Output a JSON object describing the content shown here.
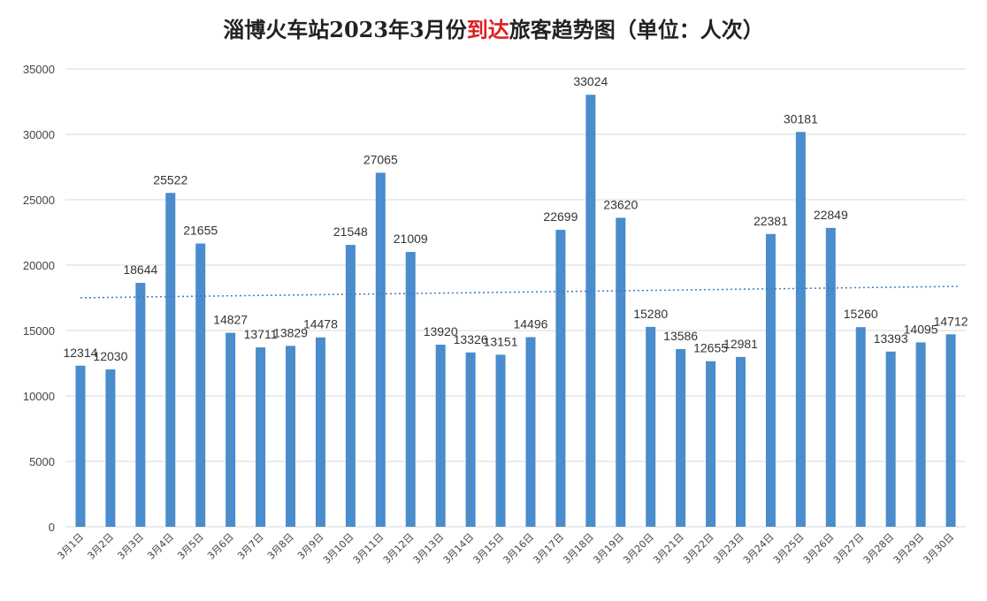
{
  "chart_data": {
    "type": "bar",
    "title_parts": [
      "淄博火车站2023年3月份",
      "到达",
      "旅客趋势图（单位：人次）"
    ],
    "categories": [
      "3月1日",
      "3月2日",
      "3月3日",
      "3月4日",
      "3月5日",
      "3月6日",
      "3月7日",
      "3月8日",
      "3月9日",
      "3月10日",
      "3月11日",
      "3月12日",
      "3月13日",
      "3月14日",
      "3月15日",
      "3月16日",
      "3月17日",
      "3月18日",
      "3月19日",
      "3月20日",
      "3月21日",
      "3月22日",
      "3月23日",
      "3月24日",
      "3月25日",
      "3月26日",
      "3月27日",
      "3月28日",
      "3月29日",
      "3月30日"
    ],
    "values": [
      12314,
      12030,
      18644,
      25522,
      21655,
      14827,
      13711,
      13829,
      14478,
      21548,
      27065,
      21009,
      13920,
      13326,
      13151,
      14496,
      22699,
      33024,
      23620,
      15280,
      13586,
      12655,
      12981,
      22381,
      30181,
      22849,
      15260,
      13393,
      14095,
      14712
    ],
    "ylim": [
      0,
      35000
    ],
    "yticks": [
      0,
      5000,
      10000,
      15000,
      20000,
      25000,
      30000,
      35000
    ],
    "grid": true,
    "trendline": "linear",
    "colors": {
      "bar": "#4a8ccc",
      "trend": "#3a7cbf",
      "grid": "#d9d9d9",
      "highlight": "#e02020"
    }
  }
}
